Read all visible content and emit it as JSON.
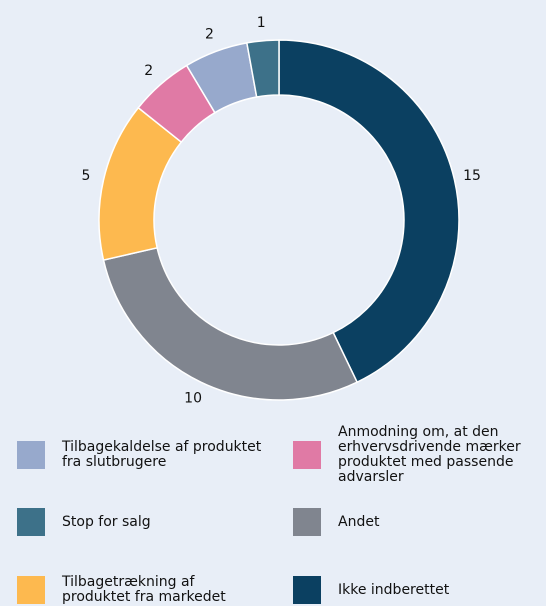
{
  "chart_data": {
    "type": "pie",
    "categories": [
      "Ikke indberettet",
      "Andet",
      "Tilbagetrækning af produktet fra markedet",
      "Anmodning om, at den erhvervsdrivende mærker produktet med passende advarsler",
      "Tilbagekaldelse af produktet fra slutbrugere",
      "Stop for salg"
    ],
    "values": [
      15,
      10,
      5,
      2,
      2,
      1
    ],
    "colors": [
      "#0b4061",
      "#80858f",
      "#fdb94f",
      "#e07aa5",
      "#97a9cc",
      "#3d7189"
    ]
  }
}
